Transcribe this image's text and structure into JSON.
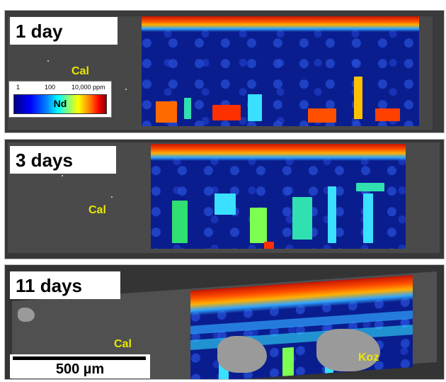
{
  "panels": [
    {
      "label": "1 day",
      "phase": "Cal"
    },
    {
      "label": "3 days",
      "phase": "Cal"
    },
    {
      "label": "11 days",
      "phase": "Cal",
      "second_phase": "Koz"
    }
  ],
  "legend": {
    "element": "Nd",
    "ticks": [
      "1",
      "100",
      "10,000 ppm"
    ],
    "scale_colors": [
      "#000086",
      "#0000ff",
      "#00ffff",
      "#ffff00",
      "#ff0000",
      "#800000"
    ]
  },
  "scalebar": {
    "label": "500 µm"
  },
  "colors": {
    "map_background": "#0a1d8e",
    "hotspot": "#ff3000",
    "phase_label": "#e8e800"
  }
}
